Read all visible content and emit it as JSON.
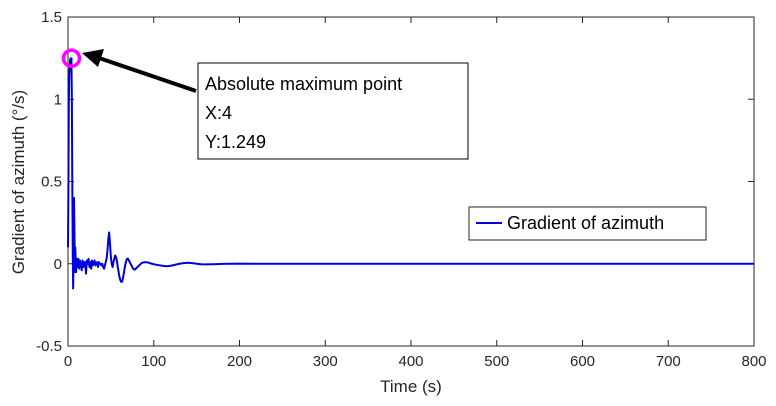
{
  "chart_data": {
    "type": "line",
    "title": "",
    "xlabel": "Time (s)",
    "ylabel": "Gradient of azimuth (°/s)",
    "xlim": [
      0,
      800
    ],
    "ylim": [
      -0.5,
      1.5
    ],
    "xticks": [
      0,
      100,
      200,
      300,
      400,
      500,
      600,
      700,
      800
    ],
    "yticks": [
      -0.5,
      0,
      0.5,
      1,
      1.5
    ],
    "xtick_labels": [
      "0",
      "100",
      "200",
      "300",
      "400",
      "500",
      "600",
      "700",
      "800"
    ],
    "ytick_labels": [
      "-0.5",
      "0",
      "0.5",
      "1",
      "1.5"
    ],
    "grid": false,
    "legend_position": "middle-right",
    "series": [
      {
        "name": "Gradient of azimuth",
        "color": "#0000dd",
        "x": [
          0,
          0.5,
          1,
          1.5,
          2,
          2.5,
          3,
          3.5,
          4,
          4.5,
          5,
          5.5,
          6,
          6.5,
          7,
          7.5,
          8,
          8.5,
          9,
          9.5,
          10,
          11,
          12,
          13,
          14,
          15,
          16,
          17,
          18,
          19,
          20,
          21,
          22,
          23,
          24,
          25,
          26,
          27,
          28,
          29,
          30,
          31,
          32,
          33,
          34,
          35,
          36,
          37,
          38,
          39,
          40,
          41,
          42,
          43,
          44,
          45,
          46,
          47,
          48,
          49,
          50,
          51,
          52,
          53,
          54,
          55,
          56,
          57,
          58,
          59,
          60,
          61,
          62,
          63,
          64,
          65,
          66,
          67,
          68,
          69,
          70,
          71,
          72,
          73,
          74,
          75,
          76,
          77,
          78,
          79,
          80,
          82,
          84,
          86,
          88,
          90,
          93,
          96,
          100,
          105,
          110,
          115,
          120,
          125,
          130,
          135,
          140,
          145,
          150,
          155,
          160,
          170,
          180,
          190,
          200,
          220,
          250,
          300,
          400,
          500,
          600,
          700,
          800
        ],
        "y": [
          0.1,
          0.5,
          1.0,
          1.15,
          1.2,
          1.24,
          1.247,
          1.249,
          1.249,
          1.0,
          0.5,
          0.1,
          -0.15,
          0.05,
          0.4,
          0.2,
          -0.05,
          0.1,
          0.02,
          -0.05,
          0.03,
          -0.02,
          0.03,
          -0.03,
          0.02,
          0.0,
          -0.04,
          0.02,
          -0.02,
          0.01,
          0.01,
          -0.06,
          0.02,
          0.0,
          0.03,
          -0.02,
          0.01,
          -0.03,
          0.02,
          -0.01,
          0.0,
          0.02,
          -0.01,
          0.0,
          0.01,
          -0.02,
          0.01,
          0.0,
          0.0,
          -0.01,
          0.0,
          -0.02,
          -0.03,
          -0.01,
          0.01,
          0.03,
          0.08,
          0.15,
          0.19,
          0.12,
          0.04,
          0.0,
          -0.02,
          0.01,
          0.03,
          0.05,
          0.04,
          0.02,
          -0.02,
          -0.05,
          -0.08,
          -0.1,
          -0.11,
          -0.11,
          -0.09,
          -0.06,
          -0.03,
          0.0,
          0.02,
          0.03,
          0.03,
          0.02,
          0.01,
          0.0,
          -0.01,
          -0.02,
          -0.03,
          -0.035,
          -0.035,
          -0.03,
          -0.025,
          -0.015,
          -0.005,
          0.005,
          0.008,
          0.01,
          0.008,
          0.003,
          -0.003,
          -0.008,
          -0.012,
          -0.015,
          -0.012,
          -0.006,
          0.0,
          0.004,
          0.006,
          0.004,
          0.0,
          -0.003,
          -0.004,
          -0.003,
          -0.001,
          0.0,
          0.001,
          0.0,
          0.0,
          0.0,
          0.0,
          0.0,
          0.0,
          0.0,
          0.0
        ]
      }
    ],
    "annotation": {
      "line1": "Absolute maximum point",
      "line2": "X:4",
      "line3": "Y:1.249",
      "x": 4,
      "y": 1.249,
      "marker_color": "#ff00ff"
    }
  }
}
